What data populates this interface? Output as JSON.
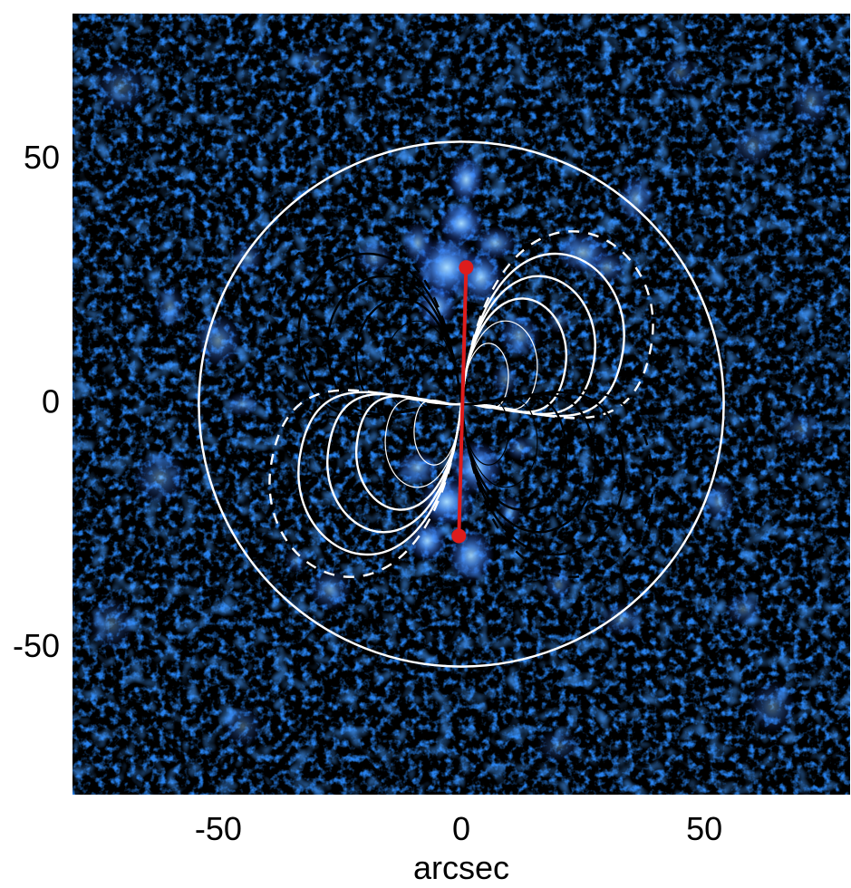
{
  "chart_data": {
    "type": "heatmap",
    "title": "",
    "xlabel": "arcsec",
    "ylabel": "",
    "xlim": [
      -80,
      80
    ],
    "ylim": [
      -80,
      80
    ],
    "xticks": [
      -50,
      0,
      50
    ],
    "yticks": [
      -50,
      0,
      50
    ],
    "xtick_labels": [
      "-50",
      "0",
      "50"
    ],
    "ytick_labels": [
      "-50",
      "0",
      "50"
    ],
    "grid": false,
    "legend": "none",
    "background_colormap": [
      "#000000",
      "#0a1f8a",
      "#2a5ed6",
      "#6ab8ff",
      "#d8f0ff"
    ],
    "aperture_circle": {
      "center": [
        0,
        0
      ],
      "radius": 54,
      "color": "#ffffff"
    },
    "red_segment": {
      "color": "#dd1c1c",
      "points": [
        {
          "x": 1.0,
          "y": 28.0
        },
        {
          "x": -0.5,
          "y": -27.0
        }
      ]
    },
    "contours": {
      "levels": 6,
      "colors": {
        "positive": "#ffffff",
        "negative": "#000000"
      },
      "dashed_level": "outermost"
    },
    "blobs": [
      {
        "x": 1,
        "y": 46,
        "s": 4.5,
        "a": 0.95
      },
      {
        "x": 0,
        "y": 37,
        "s": 5,
        "a": 1.0
      },
      {
        "x": -3,
        "y": 28,
        "s": 6,
        "a": 1.0
      },
      {
        "x": -5,
        "y": 20,
        "s": 5,
        "a": 0.9
      },
      {
        "x": 4,
        "y": 26,
        "s": 5,
        "a": 0.9
      },
      {
        "x": 7,
        "y": 33,
        "s": 4,
        "a": 0.75
      },
      {
        "x": -9,
        "y": 33,
        "s": 4,
        "a": 0.7
      },
      {
        "x": -18,
        "y": 30,
        "s": 4,
        "a": 0.55
      },
      {
        "x": 12,
        "y": 14,
        "s": 4,
        "a": 0.65
      },
      {
        "x": 20,
        "y": 17,
        "s": 3,
        "a": 0.5
      },
      {
        "x": 9,
        "y": 5,
        "s": 3,
        "a": 0.5
      },
      {
        "x": 25,
        "y": 31,
        "s": 5,
        "a": 0.75
      },
      {
        "x": 36,
        "y": 42,
        "s": 4.5,
        "a": 0.7
      },
      {
        "x": 30,
        "y": 28,
        "s": 4,
        "a": 0.6
      },
      {
        "x": 60,
        "y": 53,
        "s": 4,
        "a": 0.45
      },
      {
        "x": -44,
        "y": 30,
        "s": 4,
        "a": 0.55
      },
      {
        "x": -50,
        "y": 13,
        "s": 5,
        "a": 0.6
      },
      {
        "x": -45,
        "y": 0,
        "s": 3,
        "a": 0.5
      },
      {
        "x": -60,
        "y": 20,
        "s": 4,
        "a": 0.45
      },
      {
        "x": -3,
        "y": -20,
        "s": 6,
        "a": 1.0
      },
      {
        "x": 3,
        "y": -13,
        "s": 5,
        "a": 0.95
      },
      {
        "x": -7,
        "y": -28,
        "s": 5,
        "a": 0.95
      },
      {
        "x": 2,
        "y": -31,
        "s": 5,
        "a": 0.9
      },
      {
        "x": -9,
        "y": -13,
        "s": 4,
        "a": 0.75
      },
      {
        "x": 10,
        "y": -22,
        "s": 3,
        "a": 0.6
      },
      {
        "x": 12,
        "y": -9,
        "s": 3,
        "a": 0.55
      },
      {
        "x": -27,
        "y": -38,
        "s": 4,
        "a": 0.55
      },
      {
        "x": -34,
        "y": -32,
        "s": 3,
        "a": 0.45
      },
      {
        "x": 20,
        "y": -37,
        "s": 3,
        "a": 0.5
      },
      {
        "x": 33,
        "y": -44,
        "s": 4,
        "a": 0.5
      },
      {
        "x": 53,
        "y": -20,
        "s": 4,
        "a": 0.55
      },
      {
        "x": 58,
        "y": -42,
        "s": 4,
        "a": 0.45
      },
      {
        "x": -62,
        "y": -15,
        "s": 5,
        "a": 0.5
      },
      {
        "x": -45,
        "y": -66,
        "s": 5,
        "a": 0.4
      },
      {
        "x": 64,
        "y": -62,
        "s": 5,
        "a": 0.45
      },
      {
        "x": 70,
        "y": -5,
        "s": 4,
        "a": 0.4
      },
      {
        "x": 72,
        "y": 62,
        "s": 5,
        "a": 0.45
      },
      {
        "x": 45,
        "y": 68,
        "s": 4,
        "a": 0.4
      },
      {
        "x": -70,
        "y": 65,
        "s": 5,
        "a": 0.4
      },
      {
        "x": -30,
        "y": 70,
        "s": 4,
        "a": 0.35
      },
      {
        "x": -72,
        "y": -45,
        "s": 5,
        "a": 0.4
      },
      {
        "x": 20,
        "y": -70,
        "s": 4,
        "a": 0.35
      }
    ]
  }
}
